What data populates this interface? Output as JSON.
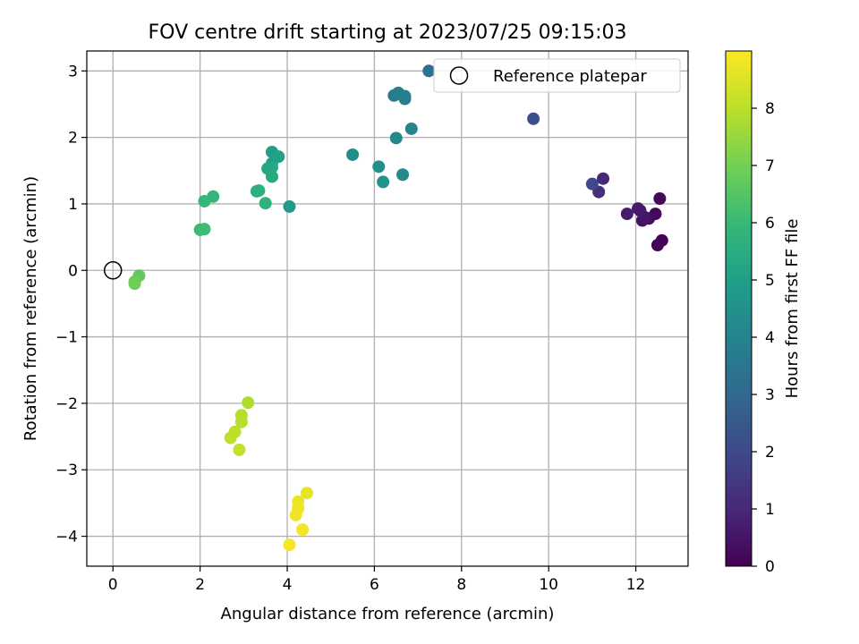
{
  "chart_data": {
    "type": "scatter",
    "title": "FOV centre drift starting at 2023/07/25 09:15:03",
    "xlabel": "Angular distance from reference (arcmin)",
    "ylabel": "Rotation from reference (arcmin)",
    "xlim": [
      -0.6,
      13.2
    ],
    "ylim": [
      -4.45,
      3.3
    ],
    "xticks": [
      0,
      2,
      4,
      6,
      8,
      10,
      12
    ],
    "xtick_labels": [
      "0",
      "2",
      "4",
      "6",
      "8",
      "10",
      "12"
    ],
    "yticks": [
      -4,
      -3,
      -2,
      -1,
      0,
      1,
      2,
      3
    ],
    "ytick_labels": [
      "−4",
      "−3",
      "−2",
      "−1",
      "0",
      "1",
      "2",
      "3"
    ],
    "grid": true,
    "legend": {
      "position": "top-right",
      "entries": [
        "Reference platepar"
      ]
    },
    "reference_point": {
      "x": 0,
      "y": 0
    },
    "colorbar": {
      "label": "Hours from first FF file",
      "range": [
        0,
        9.0
      ],
      "ticks": [
        0,
        1,
        2,
        3,
        4,
        5,
        6,
        7,
        8
      ],
      "tick_labels": [
        "0",
        "1",
        "2",
        "3",
        "4",
        "5",
        "6",
        "7",
        "8"
      ],
      "colormap": "viridis"
    },
    "series": [
      {
        "points": [
          {
            "x": 12.6,
            "y": 0.45,
            "c": 0.05
          },
          {
            "x": 12.5,
            "y": 0.38,
            "c": 0.1
          },
          {
            "x": 12.55,
            "y": 1.08,
            "c": 0.15
          },
          {
            "x": 12.45,
            "y": 0.85,
            "c": 0.2
          },
          {
            "x": 12.3,
            "y": 0.78,
            "c": 0.3
          },
          {
            "x": 12.15,
            "y": 0.75,
            "c": 0.4
          },
          {
            "x": 12.2,
            "y": 0.8,
            "c": 0.5
          },
          {
            "x": 12.1,
            "y": 0.9,
            "c": 0.6
          },
          {
            "x": 12.05,
            "y": 0.93,
            "c": 0.65
          },
          {
            "x": 11.8,
            "y": 0.85,
            "c": 0.7
          },
          {
            "x": 11.25,
            "y": 1.38,
            "c": 1.0
          },
          {
            "x": 11.15,
            "y": 1.18,
            "c": 1.2
          },
          {
            "x": 11.0,
            "y": 1.3,
            "c": 2.0
          },
          {
            "x": 9.65,
            "y": 2.28,
            "c": 2.2
          },
          {
            "x": 7.25,
            "y": 3.0,
            "c": 3.4
          },
          {
            "x": 6.45,
            "y": 2.63,
            "c": 3.7
          },
          {
            "x": 6.55,
            "y": 2.67,
            "c": 3.8
          },
          {
            "x": 6.7,
            "y": 2.58,
            "c": 3.8
          },
          {
            "x": 6.7,
            "y": 2.62,
            "c": 3.9
          },
          {
            "x": 6.85,
            "y": 2.13,
            "c": 4.1
          },
          {
            "x": 6.5,
            "y": 1.99,
            "c": 4.2
          },
          {
            "x": 6.65,
            "y": 1.44,
            "c": 4.3
          },
          {
            "x": 5.5,
            "y": 1.74,
            "c": 4.4
          },
          {
            "x": 6.1,
            "y": 1.56,
            "c": 4.5
          },
          {
            "x": 6.2,
            "y": 1.33,
            "c": 4.6
          },
          {
            "x": 4.05,
            "y": 0.96,
            "c": 4.9
          },
          {
            "x": 3.65,
            "y": 1.78,
            "c": 5.0
          },
          {
            "x": 3.65,
            "y": 1.61,
            "c": 5.1
          },
          {
            "x": 3.8,
            "y": 1.71,
            "c": 5.2
          },
          {
            "x": 3.55,
            "y": 1.53,
            "c": 5.3
          },
          {
            "x": 3.65,
            "y": 1.55,
            "c": 5.35
          },
          {
            "x": 3.65,
            "y": 1.41,
            "c": 5.4
          },
          {
            "x": 3.3,
            "y": 1.19,
            "c": 5.6
          },
          {
            "x": 3.35,
            "y": 1.2,
            "c": 5.7
          },
          {
            "x": 3.5,
            "y": 1.01,
            "c": 5.75
          },
          {
            "x": 2.3,
            "y": 1.11,
            "c": 5.9
          },
          {
            "x": 2.1,
            "y": 1.04,
            "c": 6.0
          },
          {
            "x": 2.0,
            "y": 0.61,
            "c": 6.1
          },
          {
            "x": 2.1,
            "y": 0.62,
            "c": 6.2
          },
          {
            "x": 0.6,
            "y": -0.08,
            "c": 6.8
          },
          {
            "x": 0.5,
            "y": -0.17,
            "c": 6.9
          },
          {
            "x": 0.5,
            "y": -0.2,
            "c": 7.0
          },
          {
            "x": 3.1,
            "y": -1.99,
            "c": 7.9
          },
          {
            "x": 2.95,
            "y": -2.18,
            "c": 8.0
          },
          {
            "x": 2.95,
            "y": -2.28,
            "c": 8.05
          },
          {
            "x": 2.8,
            "y": -2.43,
            "c": 8.1
          },
          {
            "x": 2.7,
            "y": -2.52,
            "c": 8.15
          },
          {
            "x": 2.9,
            "y": -2.7,
            "c": 8.2
          },
          {
            "x": 4.45,
            "y": -3.35,
            "c": 8.7
          },
          {
            "x": 4.25,
            "y": -3.48,
            "c": 8.75
          },
          {
            "x": 4.25,
            "y": -3.58,
            "c": 8.8
          },
          {
            "x": 4.2,
            "y": -3.68,
            "c": 8.8
          },
          {
            "x": 4.35,
            "y": -3.9,
            "c": 8.85
          },
          {
            "x": 4.05,
            "y": -4.13,
            "c": 8.9
          }
        ]
      }
    ]
  }
}
